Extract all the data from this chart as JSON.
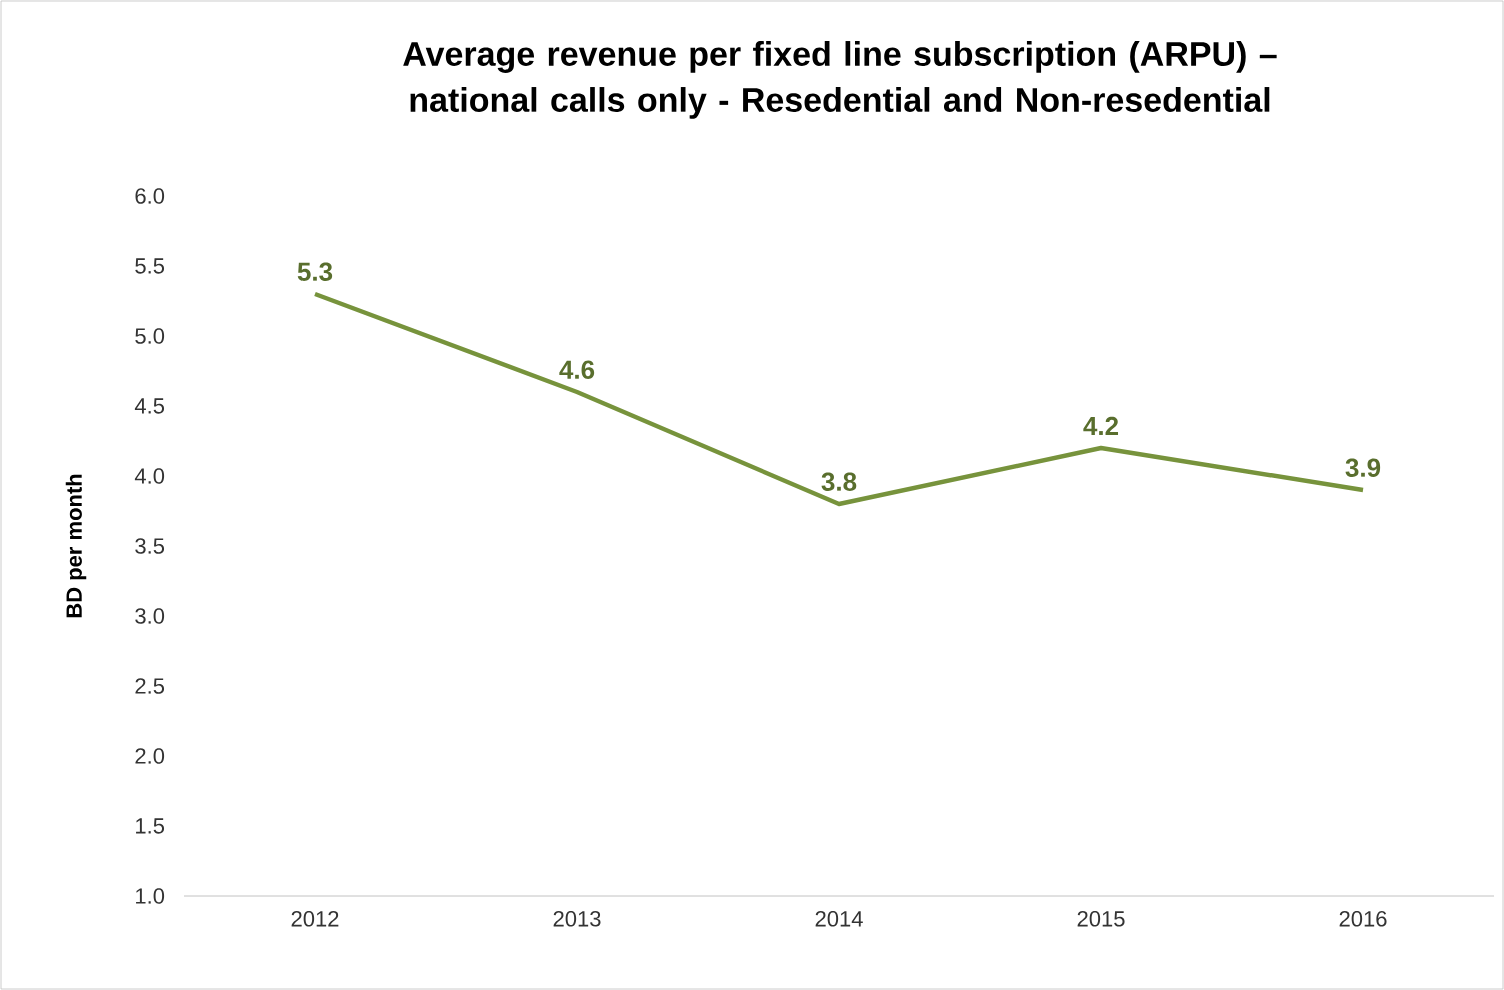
{
  "chart_data": {
    "type": "line",
    "title": "Average revenue per fixed line subscription (ARPU) – national calls only - Resedential and Non-resedential",
    "ylabel": "BD per month",
    "categories": [
      "2012",
      "2013",
      "2014",
      "2015",
      "2016"
    ],
    "series": [
      {
        "color": "#77933c",
        "values": [
          5.3,
          4.6,
          3.8,
          4.2,
          3.9
        ]
      }
    ],
    "ylim": [
      1,
      6
    ],
    "yticks": [
      {
        "value": 1,
        "label": "1.0"
      },
      {
        "value": 1.5,
        "label": "1.5"
      },
      {
        "value": 2,
        "label": "2.0"
      },
      {
        "value": 2.5,
        "label": "2.5"
      },
      {
        "value": 3,
        "label": "3.0"
      },
      {
        "value": 3.5,
        "label": "3.5"
      },
      {
        "value": 4,
        "label": "4.0"
      },
      {
        "value": 4.5,
        "label": "4.5"
      },
      {
        "value": 5,
        "label": "5.0"
      },
      {
        "value": 5.5,
        "label": "5.5"
      },
      {
        "value": 6,
        "label": "6.0"
      }
    ],
    "data_labels": true,
    "grid": false,
    "marker": "none",
    "line_style": "solid"
  }
}
